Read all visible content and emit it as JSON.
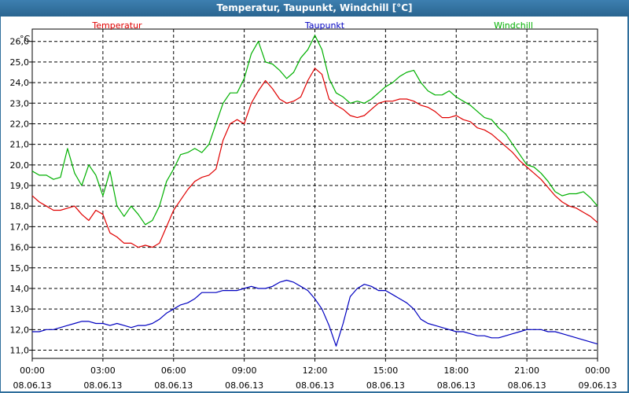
{
  "chart_data": {
    "type": "line",
    "title": "Temperatur, Taupunkt, Windchill [°C]",
    "ylabel": "°C",
    "ylim": [
      11.0,
      26.0
    ],
    "xlim": [
      0,
      24
    ],
    "y_ticks": [
      "26,0",
      "25,0",
      "24,0",
      "23,0",
      "22,0",
      "21,0",
      "20,0",
      "19,0",
      "18,0",
      "17,0",
      "16,0",
      "15,0",
      "14,0",
      "13,0",
      "12,0",
      "11,0"
    ],
    "x_ticks": [
      {
        "time": "00:00",
        "date": "08.06.13"
      },
      {
        "time": "03:00",
        "date": "08.06.13"
      },
      {
        "time": "06:00",
        "date": "08.06.13"
      },
      {
        "time": "09:00",
        "date": "08.06.13"
      },
      {
        "time": "12:00",
        "date": "08.06.13"
      },
      {
        "time": "15:00",
        "date": "08.06.13"
      },
      {
        "time": "18:00",
        "date": "08.06.13"
      },
      {
        "time": "21:00",
        "date": "08.06.13"
      },
      {
        "time": "00:00",
        "date": "09.06.13"
      }
    ],
    "grid": true,
    "series": [
      {
        "name": "Temperatur",
        "color": "#e00000",
        "x": [
          0,
          0.3,
          0.6,
          0.9,
          1.2,
          1.5,
          1.8,
          2.1,
          2.4,
          2.7,
          3.0,
          3.3,
          3.6,
          3.9,
          4.2,
          4.5,
          4.8,
          5.1,
          5.4,
          5.7,
          6.0,
          6.3,
          6.6,
          6.9,
          7.2,
          7.5,
          7.8,
          8.1,
          8.4,
          8.7,
          9.0,
          9.3,
          9.6,
          9.9,
          10.2,
          10.5,
          10.8,
          11.1,
          11.4,
          11.7,
          12.0,
          12.3,
          12.6,
          12.9,
          13.2,
          13.5,
          13.8,
          14.1,
          14.4,
          14.7,
          15.0,
          15.3,
          15.6,
          15.9,
          16.2,
          16.5,
          16.8,
          17.1,
          17.4,
          17.7,
          18.0,
          18.3,
          18.6,
          18.9,
          19.2,
          19.5,
          19.8,
          20.1,
          20.4,
          20.7,
          21.0,
          21.3,
          21.6,
          21.9,
          22.2,
          22.5,
          22.8,
          23.1,
          23.4,
          23.7,
          24.0
        ],
        "values": [
          18.5,
          18.2,
          18.0,
          17.8,
          17.8,
          17.9,
          18.0,
          17.6,
          17.3,
          17.8,
          17.6,
          16.7,
          16.5,
          16.2,
          16.2,
          16.0,
          16.1,
          16.0,
          16.2,
          17.0,
          17.8,
          18.3,
          18.8,
          19.2,
          19.4,
          19.5,
          19.8,
          21.2,
          22.0,
          22.2,
          22.0,
          23.0,
          23.6,
          24.1,
          23.7,
          23.2,
          23.0,
          23.1,
          23.3,
          24.1,
          24.7,
          24.4,
          23.2,
          22.9,
          22.7,
          22.4,
          22.3,
          22.4,
          22.7,
          23.0,
          23.1,
          23.1,
          23.2,
          23.2,
          23.1,
          22.9,
          22.8,
          22.6,
          22.3,
          22.3,
          22.4,
          22.2,
          22.1,
          21.8,
          21.7,
          21.5,
          21.2,
          20.9,
          20.6,
          20.2,
          19.9,
          19.6,
          19.3,
          18.9,
          18.5,
          18.2,
          18.0,
          17.9,
          17.7,
          17.5,
          17.2
        ]
      },
      {
        "name": "Taupunkt",
        "color": "#0000c0",
        "x": [
          0,
          0.3,
          0.6,
          0.9,
          1.2,
          1.5,
          1.8,
          2.1,
          2.4,
          2.7,
          3.0,
          3.3,
          3.6,
          3.9,
          4.2,
          4.5,
          4.8,
          5.1,
          5.4,
          5.7,
          6.0,
          6.3,
          6.6,
          6.9,
          7.2,
          7.5,
          7.8,
          8.1,
          8.4,
          8.7,
          9.0,
          9.3,
          9.6,
          9.9,
          10.2,
          10.5,
          10.8,
          11.1,
          11.4,
          11.7,
          12.0,
          12.3,
          12.6,
          12.9,
          13.2,
          13.5,
          13.8,
          14.1,
          14.4,
          14.7,
          15.0,
          15.3,
          15.6,
          15.9,
          16.2,
          16.5,
          16.8,
          17.1,
          17.4,
          17.7,
          18.0,
          18.3,
          18.6,
          18.9,
          19.2,
          19.5,
          19.8,
          20.1,
          20.4,
          20.7,
          21.0,
          21.3,
          21.6,
          21.9,
          22.2,
          22.5,
          22.8,
          23.1,
          23.4,
          23.7,
          24.0
        ],
        "values": [
          11.9,
          11.9,
          12.0,
          12.0,
          12.1,
          12.2,
          12.3,
          12.4,
          12.4,
          12.3,
          12.3,
          12.2,
          12.3,
          12.2,
          12.1,
          12.2,
          12.2,
          12.3,
          12.5,
          12.8,
          13.0,
          13.2,
          13.3,
          13.5,
          13.8,
          13.8,
          13.8,
          13.9,
          13.9,
          13.9,
          14.0,
          14.1,
          14.0,
          14.0,
          14.1,
          14.3,
          14.4,
          14.3,
          14.1,
          13.9,
          13.5,
          13.0,
          12.2,
          11.2,
          12.3,
          13.6,
          14.0,
          14.2,
          14.1,
          13.9,
          13.9,
          13.7,
          13.5,
          13.3,
          13.0,
          12.5,
          12.3,
          12.2,
          12.1,
          12.0,
          11.9,
          11.9,
          11.8,
          11.7,
          11.7,
          11.6,
          11.6,
          11.7,
          11.8,
          11.9,
          12.0,
          12.0,
          12.0,
          11.9,
          11.9,
          11.8,
          11.7,
          11.6,
          11.5,
          11.4,
          11.3
        ]
      },
      {
        "name": "Windchill",
        "color": "#00b000",
        "x": [
          0,
          0.3,
          0.6,
          0.9,
          1.2,
          1.5,
          1.8,
          2.1,
          2.4,
          2.7,
          3.0,
          3.3,
          3.6,
          3.9,
          4.2,
          4.5,
          4.8,
          5.1,
          5.4,
          5.7,
          6.0,
          6.3,
          6.6,
          6.9,
          7.2,
          7.5,
          7.8,
          8.1,
          8.4,
          8.7,
          9.0,
          9.3,
          9.6,
          9.9,
          10.2,
          10.5,
          10.8,
          11.1,
          11.4,
          11.7,
          12.0,
          12.3,
          12.6,
          12.9,
          13.2,
          13.5,
          13.8,
          14.1,
          14.4,
          14.7,
          15.0,
          15.3,
          15.6,
          15.9,
          16.2,
          16.5,
          16.8,
          17.1,
          17.4,
          17.7,
          18.0,
          18.3,
          18.6,
          18.9,
          19.2,
          19.5,
          19.8,
          20.1,
          20.4,
          20.7,
          21.0,
          21.3,
          21.6,
          21.9,
          22.2,
          22.5,
          22.8,
          23.1,
          23.4,
          23.7,
          24.0
        ],
        "values": [
          19.7,
          19.5,
          19.5,
          19.3,
          19.4,
          20.8,
          19.6,
          19.0,
          20.0,
          19.5,
          18.5,
          19.7,
          18.0,
          17.5,
          18.0,
          17.6,
          17.1,
          17.3,
          18.0,
          19.2,
          19.8,
          20.5,
          20.6,
          20.8,
          20.6,
          21.0,
          22.0,
          23.0,
          23.5,
          23.5,
          24.2,
          25.4,
          26.0,
          25.0,
          24.9,
          24.6,
          24.2,
          24.5,
          25.2,
          25.6,
          26.3,
          25.6,
          24.2,
          23.5,
          23.3,
          23.0,
          23.1,
          23.0,
          23.2,
          23.5,
          23.8,
          24.0,
          24.3,
          24.5,
          24.6,
          24.0,
          23.6,
          23.4,
          23.4,
          23.6,
          23.3,
          23.1,
          22.9,
          22.6,
          22.3,
          22.2,
          21.8,
          21.5,
          21.0,
          20.5,
          20.0,
          19.9,
          19.6,
          19.2,
          18.7,
          18.5,
          18.6,
          18.6,
          18.7,
          18.4,
          18.0
        ]
      }
    ]
  }
}
